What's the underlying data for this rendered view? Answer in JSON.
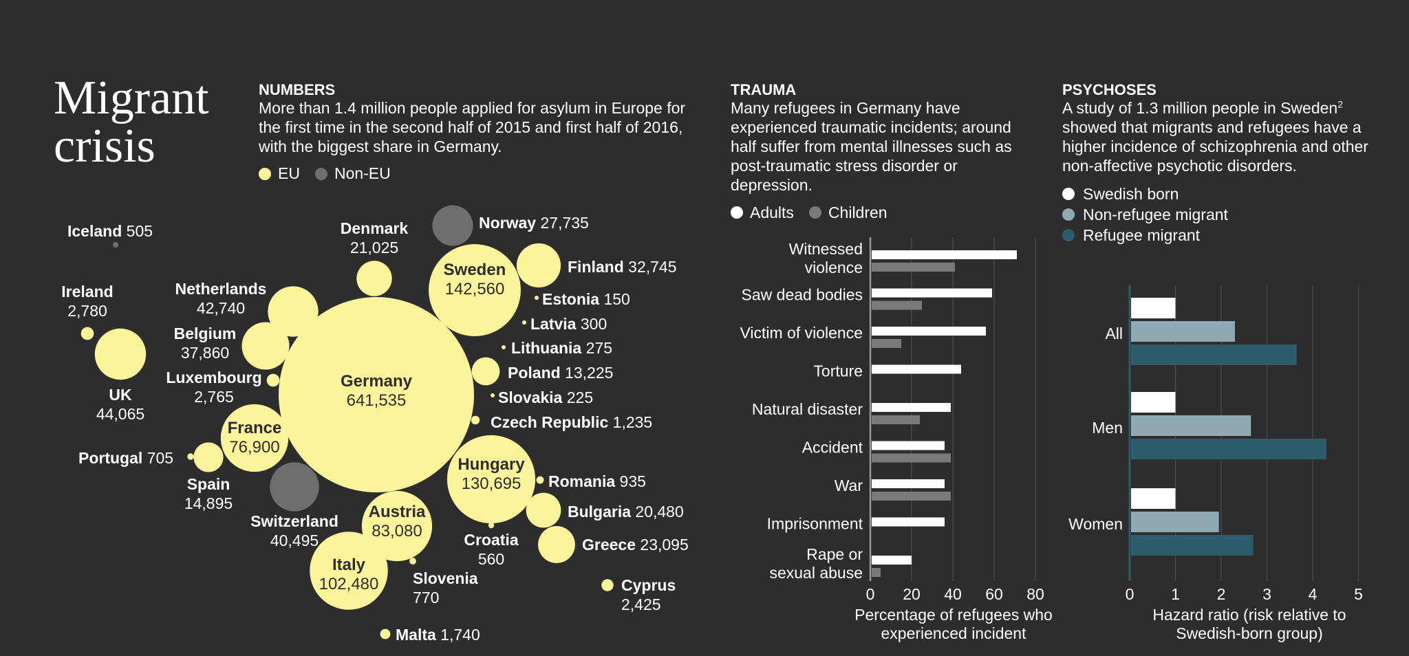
{
  "title": [
    "Migrant",
    "crisis"
  ],
  "numbers": {
    "heading": "NUMBERS",
    "body": "More than 1.4 million people applied for asylum in Europe for the first time in the second half of 2015 and first half of 2016, with the biggest share in Germany.",
    "legend": [
      {
        "label": "EU",
        "color": "#fbf49a"
      },
      {
        "label": "Non-EU",
        "color": "#6e6e70"
      }
    ]
  },
  "trauma": {
    "heading": "TRAUMA",
    "body": "Many refugees in Germany have experienced traumatic incidents; around half suffer from mental illnesses such as post-traumatic stress disorder or depression.",
    "legend": [
      {
        "label": "Adults",
        "color": "#ffffff"
      },
      {
        "label": "Children",
        "color": "#7a7a7a"
      }
    ]
  },
  "psychoses": {
    "heading": "PSYCHOSES",
    "body_pre": "A study of 1.3 million people in Sweden",
    "body_sup": "2",
    "body_post": " showed that migrants and refugees have a higher incidence of schizophrenia and other non-affective psychotic disorders.",
    "legend": [
      {
        "label": "Swedish born",
        "color": "#ffffff"
      },
      {
        "label": "Non-refugee migrant",
        "color": "#8fa9b5"
      },
      {
        "label": "Refugee migrant",
        "color": "#2e5c6c"
      }
    ]
  },
  "chart_data": [
    {
      "type": "bubble",
      "colors": {
        "EU": "#fbf49a",
        "Non-EU": "#6e6e70"
      },
      "countries": [
        {
          "name": "Iceland",
          "value": "505",
          "v": 505,
          "group": "Non-EU"
        },
        {
          "name": "Ireland",
          "value": "2,780",
          "v": 2780,
          "group": "EU"
        },
        {
          "name": "UK",
          "value": "44,065",
          "v": 44065,
          "group": "EU"
        },
        {
          "name": "Netherlands",
          "value": "42,740",
          "v": 42740,
          "group": "EU"
        },
        {
          "name": "Belgium",
          "value": "37,860",
          "v": 37860,
          "group": "EU"
        },
        {
          "name": "Luxembourg",
          "value": "2,765",
          "v": 2765,
          "group": "EU"
        },
        {
          "name": "Denmark",
          "value": "21,025",
          "v": 21025,
          "group": "EU"
        },
        {
          "name": "Norway",
          "value": "27,735",
          "v": 27735,
          "group": "Non-EU"
        },
        {
          "name": "Sweden",
          "value": "142,560",
          "v": 142560,
          "group": "EU"
        },
        {
          "name": "Finland",
          "value": "32,745",
          "v": 32745,
          "group": "EU"
        },
        {
          "name": "Estonia",
          "value": "150",
          "v": 150,
          "group": "EU"
        },
        {
          "name": "Latvia",
          "value": "300",
          "v": 300,
          "group": "EU"
        },
        {
          "name": "Lithuania",
          "value": "275",
          "v": 275,
          "group": "EU"
        },
        {
          "name": "Poland",
          "value": "13,225",
          "v": 13225,
          "group": "EU"
        },
        {
          "name": "Slovakia",
          "value": "225",
          "v": 225,
          "group": "EU"
        },
        {
          "name": "Czech Republic",
          "value": "1,235",
          "v": 1235,
          "group": "EU"
        },
        {
          "name": "Germany",
          "value": "641,535",
          "v": 641535,
          "group": "EU"
        },
        {
          "name": "France",
          "value": "76,900",
          "v": 76900,
          "group": "EU"
        },
        {
          "name": "Portugal",
          "value": "705",
          "v": 705,
          "group": "EU"
        },
        {
          "name": "Spain",
          "value": "14,895",
          "v": 14895,
          "group": "EU"
        },
        {
          "name": "Switzerland",
          "value": "40,495",
          "v": 40495,
          "group": "Non-EU"
        },
        {
          "name": "Hungary",
          "value": "130,695",
          "v": 130695,
          "group": "EU"
        },
        {
          "name": "Romania",
          "value": "935",
          "v": 935,
          "group": "EU"
        },
        {
          "name": "Bulgaria",
          "value": "20,480",
          "v": 20480,
          "group": "EU"
        },
        {
          "name": "Croatia",
          "value": "560",
          "v": 560,
          "group": "EU"
        },
        {
          "name": "Greece",
          "value": "23,095",
          "v": 23095,
          "group": "EU"
        },
        {
          "name": "Austria",
          "value": "83,080",
          "v": 83080,
          "group": "EU"
        },
        {
          "name": "Slovenia",
          "value": "770",
          "v": 770,
          "group": "EU"
        },
        {
          "name": "Italy",
          "value": "102,480",
          "v": 102480,
          "group": "EU"
        },
        {
          "name": "Cyprus",
          "value": "2,425",
          "v": 2425,
          "group": "EU"
        },
        {
          "name": "Malta",
          "value": "1,740",
          "v": 1740,
          "group": "EU"
        }
      ]
    },
    {
      "type": "bar",
      "orientation": "horizontal",
      "categories": [
        [
          "Witnessed",
          "violence"
        ],
        [
          "Saw dead bodies"
        ],
        [
          "Victim of violence"
        ],
        [
          "Torture"
        ],
        [
          "Natural disaster"
        ],
        [
          "Accident"
        ],
        [
          "War"
        ],
        [
          "Imprisonment"
        ],
        [
          "Rape or",
          "sexual abuse"
        ]
      ],
      "series": [
        {
          "name": "Adults",
          "color": "#ffffff",
          "values": [
            71,
            59,
            56,
            44,
            39,
            36,
            36,
            36,
            20
          ]
        },
        {
          "name": "Children",
          "color": "#7a7a7a",
          "values": [
            41,
            25,
            15,
            null,
            24,
            39,
            39,
            null,
            5
          ]
        }
      ],
      "xlim": [
        0,
        80
      ],
      "ticks": [
        "0",
        "20",
        "40",
        "60",
        "80"
      ],
      "xlabel": [
        "Percentage of refugees who",
        "experienced incident"
      ]
    },
    {
      "type": "bar",
      "orientation": "horizontal",
      "categories": [
        "All",
        "Men",
        "Women"
      ],
      "series": [
        {
          "name": "Swedish born",
          "color": "#ffffff",
          "values": [
            1.0,
            1.0,
            1.0
          ]
        },
        {
          "name": "Non-refugee migrant",
          "color": "#8fa9b5",
          "values": [
            2.3,
            2.65,
            1.95
          ]
        },
        {
          "name": "Refugee migrant",
          "color": "#2e5c6c",
          "values": [
            3.65,
            4.3,
            2.7
          ]
        }
      ],
      "xlim": [
        0,
        5
      ],
      "ticks": [
        "0",
        "1",
        "2",
        "3",
        "4",
        "5"
      ],
      "xlabel": [
        "Hazard ratio (risk relative to",
        "Swedish-born group)"
      ]
    }
  ]
}
